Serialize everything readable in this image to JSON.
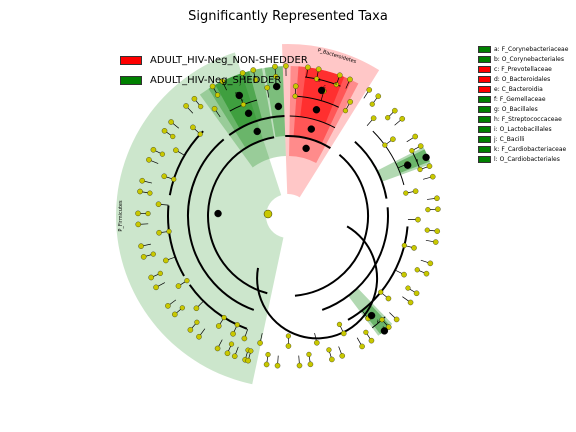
{
  "chart_data": {
    "type": "cladogram",
    "title": "Significantly Represented Taxa",
    "groups": [
      {
        "name": "ADULT_HIV-Neg_NON-SHEDDER",
        "color": "#ff0000"
      },
      {
        "name": "ADULT_HIV-Neg_SHEDDER",
        "color": "#008000"
      }
    ],
    "biomarkers": [
      {
        "key": "a",
        "label": "a: F_Corynebacteriaceae",
        "group": "ADULT_HIV-Neg_SHEDDER"
      },
      {
        "key": "b",
        "label": "b: O_Corynebacteriales",
        "group": "ADULT_HIV-Neg_SHEDDER"
      },
      {
        "key": "c",
        "label": "c: F_Prevotellaceae",
        "group": "ADULT_HIV-Neg_NON-SHEDDER"
      },
      {
        "key": "d",
        "label": "d: O_Bacteroidales",
        "group": "ADULT_HIV-Neg_NON-SHEDDER"
      },
      {
        "key": "e",
        "label": "e: C_Bacteroidia",
        "group": "ADULT_HIV-Neg_NON-SHEDDER"
      },
      {
        "key": "f",
        "label": "f: F_Gemellaceae",
        "group": "ADULT_HIV-Neg_SHEDDER"
      },
      {
        "key": "g",
        "label": "g: O_Bacillales",
        "group": "ADULT_HIV-Neg_SHEDDER"
      },
      {
        "key": "h",
        "label": "h: F_Streptococcaceae",
        "group": "ADULT_HIV-Neg_SHEDDER"
      },
      {
        "key": "i",
        "label": "i: O_Lactobacillales",
        "group": "ADULT_HIV-Neg_SHEDDER"
      },
      {
        "key": "j",
        "label": "j: C_Bacilli",
        "group": "ADULT_HIV-Neg_SHEDDER"
      },
      {
        "key": "k",
        "label": "k: F_Cardiobacteriaceae",
        "group": "ADULT_HIV-Neg_SHEDDER"
      },
      {
        "key": "l",
        "label": "l: O_Cardiobacteriales",
        "group": "ADULT_HIV-Neg_SHEDDER"
      }
    ],
    "clade_labels": {
      "firmicutes": "P_Firmicutes",
      "bacteroidetes": "P_Bacteroidetes"
    },
    "colors": {
      "non_shedder": "#ff0000",
      "shedder": "#008000",
      "neutral_node": "#c8c800"
    }
  }
}
